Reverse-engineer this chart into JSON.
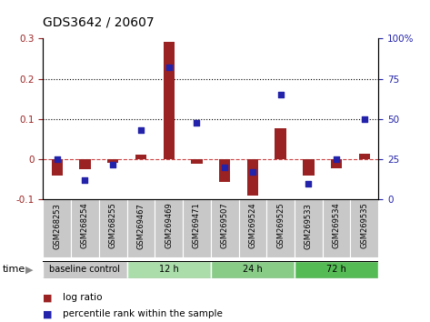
{
  "title": "GDS3642 / 20607",
  "samples": [
    "GSM268253",
    "GSM268254",
    "GSM268255",
    "GSM269467",
    "GSM269469",
    "GSM269471",
    "GSM269507",
    "GSM269524",
    "GSM269525",
    "GSM269533",
    "GSM269534",
    "GSM269535"
  ],
  "log_ratio": [
    -0.04,
    -0.025,
    -0.008,
    0.012,
    0.292,
    -0.01,
    -0.055,
    -0.09,
    0.078,
    -0.04,
    -0.022,
    0.015
  ],
  "percentile_rank": [
    25,
    12,
    22,
    43,
    82,
    48,
    20,
    17,
    65,
    10,
    25,
    50
  ],
  "bar_color": "#9B2222",
  "dot_color": "#2222AA",
  "ylim_left": [
    -0.1,
    0.3
  ],
  "ylim_right": [
    0,
    100
  ],
  "yticks_left": [
    -0.1,
    0.0,
    0.1,
    0.2,
    0.3
  ],
  "yticks_right": [
    0,
    25,
    50,
    75,
    100
  ],
  "groups": [
    {
      "label": "baseline control",
      "start": 0,
      "end": 3,
      "color": "#c8c8c8"
    },
    {
      "label": "12 h",
      "start": 3,
      "end": 6,
      "color": "#aaddaa"
    },
    {
      "label": "24 h",
      "start": 6,
      "end": 9,
      "color": "#88cc88"
    },
    {
      "label": "72 h",
      "start": 9,
      "end": 12,
      "color": "#55bb55"
    }
  ],
  "time_label": "time",
  "legend_log_ratio": "log ratio",
  "legend_percentile": "percentile rank within the sample",
  "dotted_lines": [
    0.1,
    0.2
  ],
  "zero_line_color": "#CC4444",
  "bg_color": "#ffffff",
  "bar_width": 0.4
}
